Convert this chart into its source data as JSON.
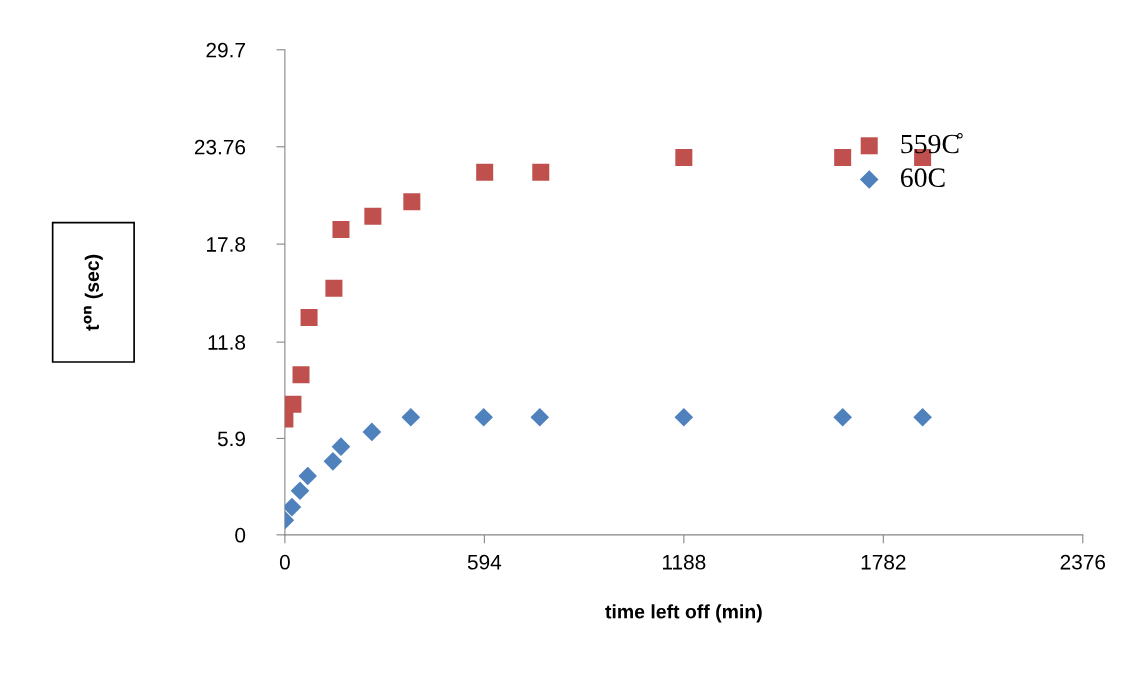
{
  "chart_data": {
    "type": "scatter",
    "xlabel": "time left off (min)",
    "ylabel": "t$^{on}$ (sec)",
    "xlim": [
      0,
      2376
    ],
    "xticks": [
      0,
      594,
      1188,
      1782,
      2376
    ],
    "ylim": [
      0,
      29.7
    ],
    "yticks": [
      0,
      5.9,
      11.8,
      17.8,
      23.76,
      29.7
    ],
    "grid": false,
    "legend": "top right",
    "series": [
      {
        "name": "559C̊",
        "color": "#c0504d",
        "marker": "square",
        "x": [
          0,
          24,
          48,
          72,
          146,
          167,
          262,
          378,
          595,
          762,
          1188,
          1661,
          1899
        ],
        "values": [
          7.1,
          8.0,
          9.8,
          13.3,
          15.1,
          18.7,
          19.5,
          20.4,
          22.2,
          22.2,
          23.1,
          23.1,
          23.1
        ]
      },
      {
        "name": "60C",
        "color": "#4f81bd",
        "marker": "diamond",
        "x": [
          0,
          21,
          45,
          68,
          143,
          167,
          259,
          375,
          592,
          759,
          1188,
          1661,
          1899
        ],
        "values": [
          0.9,
          1.7,
          2.7,
          3.6,
          4.5,
          5.4,
          6.3,
          7.2,
          7.2,
          7.2,
          7.2,
          7.2,
          7.2
        ]
      }
    ]
  }
}
